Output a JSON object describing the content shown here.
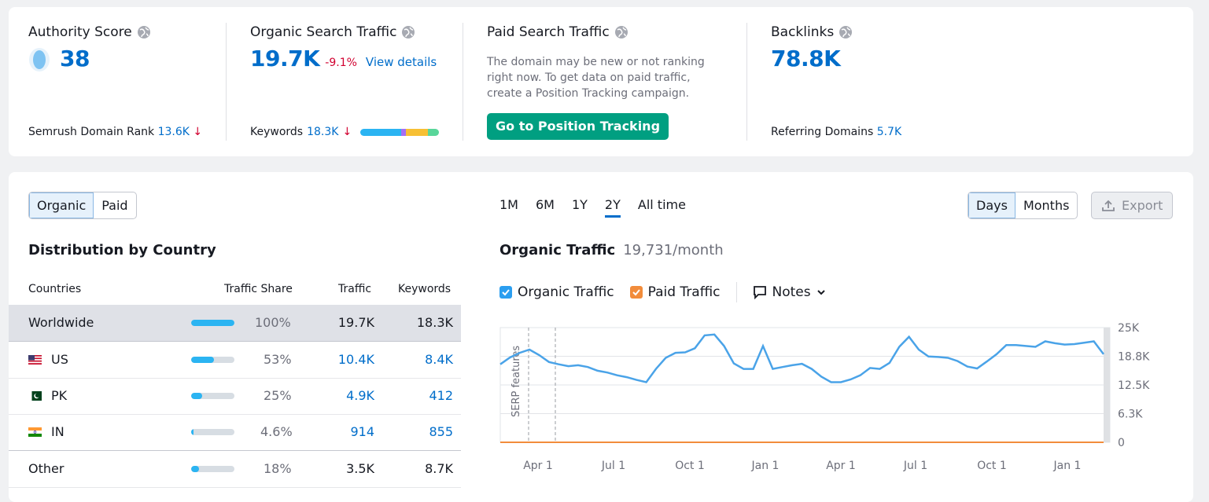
{
  "metrics": {
    "authority": {
      "title": "Authority Score",
      "value": "38",
      "rank_label": "Semrush Domain Rank",
      "rank_value": "13.6K",
      "rank_arrow": "↓"
    },
    "organic": {
      "title": "Organic Search Traffic",
      "value": "19.7K",
      "change": "-9.1%",
      "link": "View details",
      "keywords_label": "Keywords",
      "keywords_value": "18.3K",
      "keywords_arrow": "↓"
    },
    "paid": {
      "title": "Paid Search Traffic",
      "description": "The domain may be new or not ranking right now. To get data on paid traffic, create a Position Tracking campaign.",
      "button": "Go to Position Tracking"
    },
    "backlinks": {
      "title": "Backlinks",
      "value": "78.8K",
      "ref_label": "Referring Domains",
      "ref_value": "5.7K"
    }
  },
  "toggle": {
    "organic": "Organic",
    "paid": "Paid"
  },
  "distribution": {
    "title": "Distribution by Country",
    "headers": {
      "countries": "Countries",
      "share": "Traffic Share",
      "traffic": "Traffic",
      "keywords": "Keywords"
    },
    "rows": [
      {
        "name": "Worldwide",
        "share": "100%",
        "share_value": 100,
        "traffic": "19.7K",
        "keywords": "18.3K"
      },
      {
        "name": "US",
        "share": "53%",
        "share_value": 53,
        "traffic": "10.4K",
        "keywords": "8.4K"
      },
      {
        "name": "PK",
        "share": "25%",
        "share_value": 25,
        "traffic": "4.9K",
        "keywords": "412"
      },
      {
        "name": "IN",
        "share": "4.6%",
        "share_value": 4.6,
        "traffic": "914",
        "keywords": "855"
      },
      {
        "name": "Other",
        "share": "18%",
        "share_value": 18,
        "traffic": "3.5K",
        "keywords": "8.7K"
      }
    ]
  },
  "ranges": [
    "1M",
    "6M",
    "1Y",
    "2Y",
    "All time"
  ],
  "active_range": "2Y",
  "granularity": {
    "days": "Days",
    "months": "Months"
  },
  "export": "Export",
  "chart_header": {
    "title": "Organic Traffic",
    "value": "19,731/month"
  },
  "legend": {
    "organic": "Organic Traffic",
    "paid": "Paid Traffic",
    "notes": "Notes"
  },
  "colors": {
    "organic": "#4aa3e8",
    "paid": "#f28c3b",
    "accent": "#006dca",
    "button": "#009f81"
  },
  "chart_data": {
    "type": "line",
    "title": "Organic Traffic",
    "annotation": "SERP features",
    "x_ticks": [
      "Apr 1",
      "Jul 1",
      "Oct 1",
      "Jan 1",
      "Apr 1",
      "Jul 1",
      "Oct 1",
      "Jan 1"
    ],
    "y_ticks": [
      "25K",
      "18.8K",
      "12.5K",
      "6.3K",
      "0"
    ],
    "ylim": [
      0,
      25000
    ],
    "series": [
      {
        "name": "Organic Traffic",
        "values": [
          17000,
          18500,
          19500,
          20200,
          19000,
          17500,
          17000,
          16600,
          16800,
          16400,
          15600,
          15200,
          14600,
          14200,
          13600,
          13100,
          16000,
          18400,
          19500,
          19600,
          20500,
          23300,
          23500,
          21000,
          17200,
          16000,
          16000,
          21000,
          16000,
          16400,
          16800,
          17100,
          16000,
          14300,
          13100,
          13100,
          13700,
          14600,
          16200,
          16000,
          17300,
          20800,
          23000,
          20200,
          18700,
          18600,
          18400,
          17700,
          16500,
          16100,
          17600,
          19200,
          21200,
          21200,
          21000,
          20800,
          22000,
          21600,
          21300,
          21400,
          21700,
          22000,
          19200
        ]
      },
      {
        "name": "Paid Traffic",
        "values": [
          0,
          0,
          0,
          0,
          0,
          0,
          0,
          0,
          0,
          0,
          0,
          0,
          0,
          0,
          0,
          0,
          0,
          0,
          0,
          0,
          0,
          0,
          0,
          0,
          0,
          0,
          0,
          0,
          0,
          0,
          0,
          0,
          0,
          0,
          0,
          0,
          0,
          0,
          0,
          0,
          0,
          0,
          0,
          0,
          0,
          0,
          0,
          0,
          0,
          0,
          0,
          0,
          0,
          0,
          0,
          0,
          0,
          0,
          0,
          0,
          0,
          0,
          0
        ]
      }
    ]
  }
}
